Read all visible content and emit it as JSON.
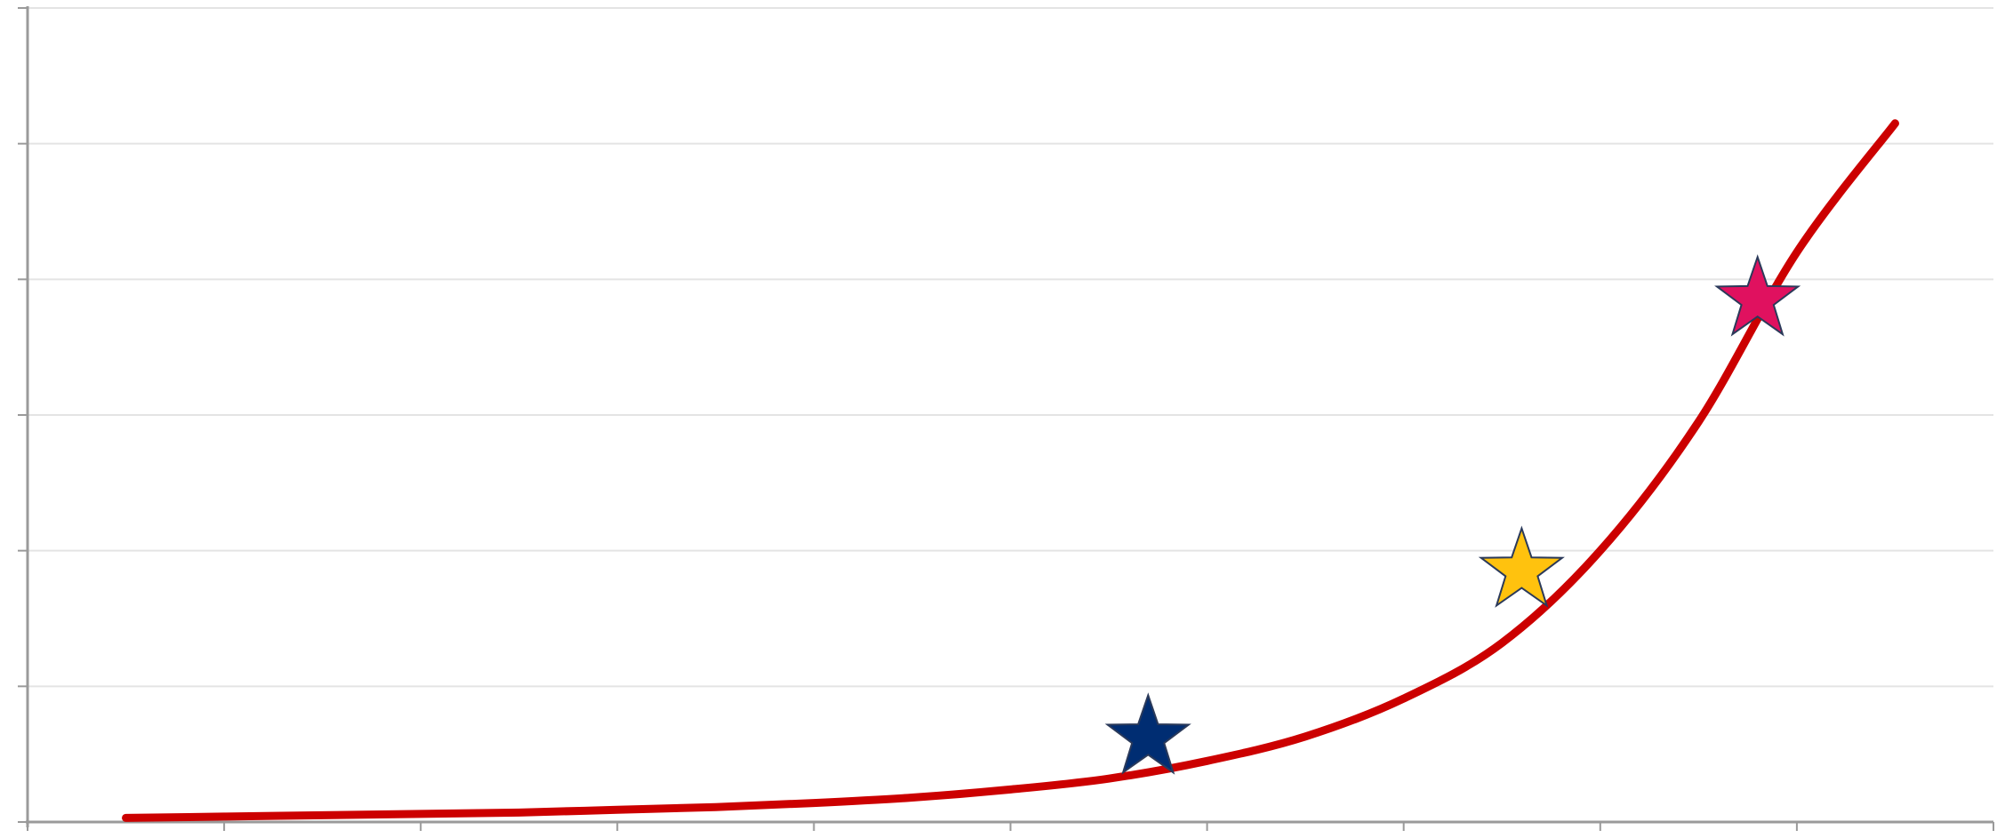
{
  "chart_data": {
    "type": "scatter",
    "title": "",
    "xlabel": "",
    "ylabel": "",
    "xlim": [
      0,
      10
    ],
    "ylim": [
      0,
      6
    ],
    "x_ticks": [
      0,
      1,
      2,
      3,
      4,
      5,
      6,
      7,
      8,
      9,
      10
    ],
    "y_ticks": [
      0,
      1,
      2,
      3,
      4,
      5,
      6
    ],
    "grid": true,
    "legend": "none",
    "series": [
      {
        "kind": "line",
        "color": "#cc0000",
        "x": [
          0.5,
          1.0,
          1.5,
          2.0,
          2.5,
          3.0,
          3.5,
          4.0,
          4.5,
          5.0,
          5.5,
          6.0,
          6.5,
          7.0,
          7.5,
          8.0,
          8.5,
          9.0,
          9.5
        ],
        "y": [
          0.03,
          0.04,
          0.05,
          0.06,
          0.07,
          0.09,
          0.11,
          0.14,
          0.18,
          0.24,
          0.32,
          0.45,
          0.63,
          0.91,
          1.32,
          2.0,
          2.95,
          4.2,
          5.15
        ]
      },
      {
        "kind": "marker",
        "marker": "star",
        "color": "#002d72",
        "x": [
          5.7
        ],
        "y": [
          0.62
        ]
      },
      {
        "kind": "marker",
        "marker": "star",
        "color": "#ffc20e",
        "x": [
          7.6
        ],
        "y": [
          1.85
        ]
      },
      {
        "kind": "marker",
        "marker": "star",
        "color": "#e0115f",
        "x": [
          8.8
        ],
        "y": [
          3.85
        ]
      }
    ]
  }
}
